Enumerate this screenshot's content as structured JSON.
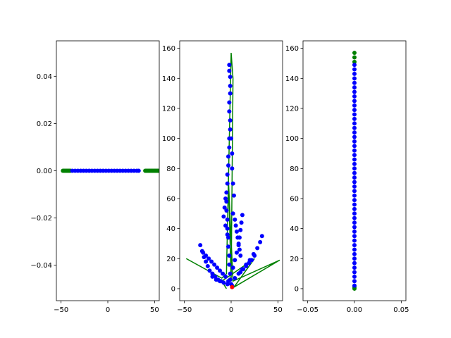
{
  "figure": {
    "background": "#ffffff",
    "colors": {
      "green": "#008000",
      "blue": "#0000ff",
      "red": "#ff0000",
      "frame": "#000000"
    }
  },
  "chart_data": [
    {
      "type": "scatter",
      "title": "",
      "xlabel": "",
      "ylabel": "",
      "grid": false,
      "xlim": [
        -55,
        55
      ],
      "ylim": [
        -0.055,
        0.055
      ],
      "xticks": [
        -50,
        0,
        50
      ],
      "yticks": [
        -0.04,
        -0.02,
        0.0,
        0.02,
        0.04
      ],
      "ytick_format": 2,
      "series": [
        {
          "style": "points",
          "color": "#008000",
          "points": [
            [
              -48,
              0
            ],
            [
              -47,
              0
            ],
            [
              -46,
              0
            ],
            [
              -45,
              0
            ],
            [
              -44,
              0
            ],
            [
              -43,
              0
            ],
            [
              -42,
              0
            ],
            [
              -41,
              0
            ],
            [
              -40,
              0
            ],
            [
              40,
              0
            ],
            [
              41,
              0
            ],
            [
              42,
              0
            ],
            [
              43,
              0
            ],
            [
              44,
              0
            ],
            [
              45,
              0
            ],
            [
              46,
              0
            ],
            [
              47,
              0
            ],
            [
              48,
              0
            ],
            [
              49,
              0
            ],
            [
              50,
              0
            ],
            [
              51,
              0
            ],
            [
              52,
              0
            ],
            [
              53,
              0
            ],
            [
              54,
              0
            ]
          ]
        },
        {
          "style": "points",
          "color": "#0000ff",
          "points": [
            [
              -38,
              0
            ],
            [
              -35,
              0
            ],
            [
              -32,
              0
            ],
            [
              -29,
              0
            ],
            [
              -26,
              0
            ],
            [
              -23,
              0
            ],
            [
              -20,
              0
            ],
            [
              -17,
              0
            ],
            [
              -14,
              0
            ],
            [
              -11,
              0
            ],
            [
              -8,
              0
            ],
            [
              -5,
              0
            ],
            [
              -2,
              0
            ],
            [
              1,
              0
            ],
            [
              4,
              0
            ],
            [
              7,
              0
            ],
            [
              10,
              0
            ],
            [
              13,
              0
            ],
            [
              16,
              0
            ],
            [
              19,
              0
            ],
            [
              22,
              0
            ],
            [
              25,
              0
            ],
            [
              28,
              0
            ],
            [
              31,
              0
            ],
            [
              33,
              0
            ]
          ]
        }
      ]
    },
    {
      "type": "scatter",
      "title": "",
      "xlabel": "",
      "ylabel": "",
      "grid": false,
      "xlim": [
        -55,
        55
      ],
      "ylim": [
        -8,
        165
      ],
      "xticks": [
        -50,
        0,
        50
      ],
      "yticks": [
        0,
        20,
        40,
        60,
        80,
        100,
        120,
        140,
        160
      ],
      "ytick_format": 0,
      "series": [
        {
          "style": "line",
          "color": "#008000",
          "points": [
            [
              -48,
              20
            ],
            [
              -10,
              7
            ],
            [
              -5,
              10
            ],
            [
              0,
              157
            ],
            [
              2,
              140
            ],
            [
              0,
              5
            ],
            [
              -3,
              74
            ],
            [
              2,
              5
            ],
            [
              52,
              19
            ],
            [
              3,
              1
            ],
            [
              25,
              20
            ],
            [
              -10,
              5
            ],
            [
              -5,
              0
            ]
          ]
        },
        {
          "style": "points",
          "color": "#0000ff",
          "points": [
            [
              -2,
              149
            ],
            [
              -2,
              145
            ],
            [
              -1,
              141
            ],
            [
              -1,
              135
            ],
            [
              -1,
              130
            ],
            [
              -2,
              124
            ],
            [
              -2,
              118
            ],
            [
              -1,
              112
            ],
            [
              -1,
              106
            ],
            [
              -2,
              100
            ],
            [
              -2,
              94
            ],
            [
              -3,
              88
            ],
            [
              -3,
              82
            ],
            [
              -4,
              76
            ],
            [
              -4,
              70
            ],
            [
              -5,
              64
            ],
            [
              -5,
              58
            ],
            [
              -5,
              52
            ],
            [
              -4,
              46
            ],
            [
              -4,
              40
            ],
            [
              -3,
              34
            ],
            [
              -3,
              28
            ],
            [
              -2,
              22
            ],
            [
              -2,
              16
            ],
            [
              -1,
              10
            ],
            [
              -1,
              6
            ],
            [
              0,
              3
            ],
            [
              1,
              2
            ],
            [
              -6,
              60
            ],
            [
              -7,
              54
            ],
            [
              -8,
              48
            ],
            [
              -6,
              42
            ],
            [
              -4,
              36
            ],
            [
              2,
              50
            ],
            [
              4,
              46
            ],
            [
              5,
              42
            ],
            [
              6,
              38
            ],
            [
              7,
              34
            ],
            [
              8,
              30
            ],
            [
              9,
              26
            ],
            [
              10,
              22
            ],
            [
              12,
              49
            ],
            [
              11,
              44
            ],
            [
              10,
              39
            ],
            [
              9,
              34
            ],
            [
              8,
              29
            ],
            [
              6,
              24
            ],
            [
              4,
              19
            ],
            [
              2,
              14
            ],
            [
              33,
              35
            ],
            [
              31,
              31
            ],
            [
              28,
              27
            ],
            [
              24,
              23
            ],
            [
              20,
              19
            ],
            [
              16,
              16
            ],
            [
              12,
              13
            ],
            [
              8,
              10
            ],
            [
              4,
              7
            ],
            [
              25,
              22
            ],
            [
              22,
              19
            ],
            [
              19,
              17
            ],
            [
              16,
              15
            ],
            [
              13,
              13
            ],
            [
              10,
              11
            ],
            [
              -33,
              29
            ],
            [
              -31,
              25
            ],
            [
              -29,
              21
            ],
            [
              -27,
              18
            ],
            [
              -25,
              15
            ],
            [
              -23,
              12
            ],
            [
              -20,
              10
            ],
            [
              -17,
              8
            ],
            [
              -14,
              6
            ],
            [
              -11,
              5
            ],
            [
              -30,
              24
            ],
            [
              -27,
              22
            ],
            [
              -24,
              20
            ],
            [
              -21,
              18
            ],
            [
              -18,
              16
            ],
            [
              -15,
              14
            ],
            [
              -12,
              12
            ],
            [
              -9,
              10
            ],
            [
              -6,
              8
            ],
            [
              -3,
              5
            ],
            [
              -20,
              8
            ],
            [
              -16,
              6
            ],
            [
              -12,
              5
            ],
            [
              -8,
              4
            ],
            [
              -4,
              3
            ],
            [
              3,
              62
            ],
            [
              2,
              70
            ],
            [
              1,
              80
            ],
            [
              1,
              90
            ],
            [
              0,
              100
            ]
          ]
        },
        {
          "style": "points",
          "color": "#ff0000",
          "points": [
            [
              1,
              1
            ]
          ]
        }
      ]
    },
    {
      "type": "scatter",
      "title": "",
      "xlabel": "",
      "ylabel": "",
      "grid": false,
      "xlim": [
        -0.055,
        0.055
      ],
      "ylim": [
        -8,
        165
      ],
      "xticks": [
        -0.05,
        0.0,
        0.05
      ],
      "yticks": [
        0,
        20,
        40,
        60,
        80,
        100,
        120,
        140,
        160
      ],
      "ytick_format": 0,
      "series": [
        {
          "style": "points",
          "color": "#008000",
          "points": [
            [
              0,
              157
            ],
            [
              0,
              154
            ],
            [
              0,
              151
            ],
            [
              0,
              1
            ],
            [
              0,
              0
            ]
          ]
        },
        {
          "style": "points",
          "color": "#0000ff",
          "points": [
            [
              0,
              149
            ],
            [
              0,
              146
            ],
            [
              0,
              143
            ],
            [
              0,
              140
            ],
            [
              0,
              137
            ],
            [
              0,
              134
            ],
            [
              0,
              131
            ],
            [
              0,
              128
            ],
            [
              0,
              125
            ],
            [
              0,
              122
            ],
            [
              0,
              119
            ],
            [
              0,
              116
            ],
            [
              0,
              113
            ],
            [
              0,
              110
            ],
            [
              0,
              107
            ],
            [
              0,
              104
            ],
            [
              0,
              101
            ],
            [
              0,
              98
            ],
            [
              0,
              95
            ],
            [
              0,
              92
            ],
            [
              0,
              89
            ],
            [
              0,
              86
            ],
            [
              0,
              83
            ],
            [
              0,
              80
            ],
            [
              0,
              77
            ],
            [
              0,
              74
            ],
            [
              0,
              71
            ],
            [
              0,
              68
            ],
            [
              0,
              65
            ],
            [
              0,
              62
            ],
            [
              0,
              59
            ],
            [
              0,
              56
            ],
            [
              0,
              53
            ],
            [
              0,
              50
            ],
            [
              0,
              47
            ],
            [
              0,
              44
            ],
            [
              0,
              41
            ],
            [
              0,
              38
            ],
            [
              0,
              35
            ],
            [
              0,
              32
            ],
            [
              0,
              29
            ],
            [
              0,
              26
            ],
            [
              0,
              23
            ],
            [
              0,
              20
            ],
            [
              0,
              17
            ],
            [
              0,
              14
            ],
            [
              0,
              11
            ],
            [
              0,
              8
            ],
            [
              0,
              5
            ],
            [
              0,
              2
            ]
          ]
        }
      ]
    }
  ]
}
